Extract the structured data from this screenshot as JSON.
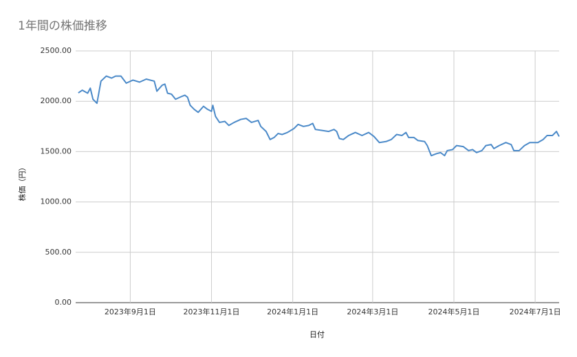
{
  "chart_data": {
    "type": "line",
    "title": "1年間の株価推移",
    "x_label": "日付",
    "y_label": "株価（円）",
    "x": [
      "2023-07-24",
      "2023-07-27",
      "2023-07-31",
      "2023-08-02",
      "2023-08-04",
      "2023-08-07",
      "2023-08-10",
      "2023-08-14",
      "2023-08-18",
      "2023-08-21",
      "2023-08-25",
      "2023-08-29",
      "2023-09-03",
      "2023-09-08",
      "2023-09-13",
      "2023-09-19",
      "2023-09-21",
      "2023-09-25",
      "2023-09-27",
      "2023-09-29",
      "2023-10-02",
      "2023-10-05",
      "2023-10-10",
      "2023-10-12",
      "2023-10-14",
      "2023-10-16",
      "2023-10-19",
      "2023-10-22",
      "2023-10-26",
      "2023-10-29",
      "2023-11-01",
      "2023-11-02",
      "2023-11-04",
      "2023-11-07",
      "2023-11-11",
      "2023-11-14",
      "2023-11-18",
      "2023-11-23",
      "2023-11-27",
      "2023-12-01",
      "2023-12-06",
      "2023-12-08",
      "2023-12-12",
      "2023-12-15",
      "2023-12-18",
      "2023-12-21",
      "2023-12-24",
      "2023-12-28",
      "2024-01-02",
      "2024-01-05",
      "2024-01-09",
      "2024-01-13",
      "2024-01-16",
      "2024-01-18",
      "2024-01-23",
      "2024-01-28",
      "2024-02-01",
      "2024-02-03",
      "2024-02-05",
      "2024-02-08",
      "2024-02-12",
      "2024-02-17",
      "2024-02-22",
      "2024-02-27",
      "2024-03-02",
      "2024-03-06",
      "2024-03-11",
      "2024-03-15",
      "2024-03-19",
      "2024-03-23",
      "2024-03-26",
      "2024-03-28",
      "2024-04-01",
      "2024-04-04",
      "2024-04-09",
      "2024-04-11",
      "2024-04-14",
      "2024-04-18",
      "2024-04-21",
      "2024-04-24",
      "2024-04-26",
      "2024-04-30",
      "2024-05-03",
      "2024-05-08",
      "2024-05-12",
      "2024-05-15",
      "2024-05-18",
      "2024-05-22",
      "2024-05-25",
      "2024-05-29",
      "2024-05-31",
      "2024-06-04",
      "2024-06-09",
      "2024-06-13",
      "2024-06-15",
      "2024-06-19",
      "2024-06-23",
      "2024-06-27",
      "2024-07-03",
      "2024-07-07",
      "2024-07-10",
      "2024-07-14",
      "2024-07-17",
      "2024-07-19"
    ],
    "series": [
      {
        "name": "株価",
        "color": "#4a89c8",
        "values": [
          2083,
          2110,
          2080,
          2130,
          2020,
          1980,
          2200,
          2250,
          2230,
          2250,
          2250,
          2180,
          2210,
          2190,
          2220,
          2200,
          2100,
          2160,
          2170,
          2080,
          2070,
          2020,
          2050,
          2060,
          2040,
          1960,
          1920,
          1890,
          1950,
          1920,
          1900,
          1960,
          1850,
          1790,
          1800,
          1760,
          1790,
          1820,
          1830,
          1790,
          1810,
          1750,
          1700,
          1620,
          1640,
          1680,
          1670,
          1690,
          1730,
          1770,
          1750,
          1760,
          1780,
          1720,
          1710,
          1700,
          1720,
          1700,
          1630,
          1620,
          1660,
          1690,
          1660,
          1690,
          1650,
          1590,
          1600,
          1620,
          1670,
          1660,
          1690,
          1640,
          1640,
          1610,
          1600,
          1560,
          1460,
          1480,
          1490,
          1460,
          1510,
          1520,
          1560,
          1550,
          1510,
          1520,
          1490,
          1510,
          1560,
          1570,
          1530,
          1560,
          1590,
          1570,
          1510,
          1510,
          1560,
          1590,
          1590,
          1620,
          1660,
          1660,
          1700,
          1650
        ]
      }
    ],
    "xlim": [
      "2023-07-22",
      "2024-07-19"
    ],
    "xticks": [
      {
        "value": "2023-09-01",
        "label": "2023年9月1日"
      },
      {
        "value": "2023-11-01",
        "label": "2023年11月1日"
      },
      {
        "value": "2024-01-01",
        "label": "2024年1月1日"
      },
      {
        "value": "2024-03-01",
        "label": "2024年3月1日"
      },
      {
        "value": "2024-05-01",
        "label": "2024年5月1日"
      },
      {
        "value": "2024-07-01",
        "label": "2024年7月1日"
      }
    ],
    "ylim": [
      0,
      2500
    ],
    "yticks": [
      {
        "value": 0,
        "label": "0.00"
      },
      {
        "value": 500,
        "label": "500.00"
      },
      {
        "value": 1000,
        "label": "1000.00"
      },
      {
        "value": 1500,
        "label": "1500.00"
      },
      {
        "value": 2000,
        "label": "2000.00"
      },
      {
        "value": 2500,
        "label": "2500.00"
      }
    ],
    "grid": true
  }
}
